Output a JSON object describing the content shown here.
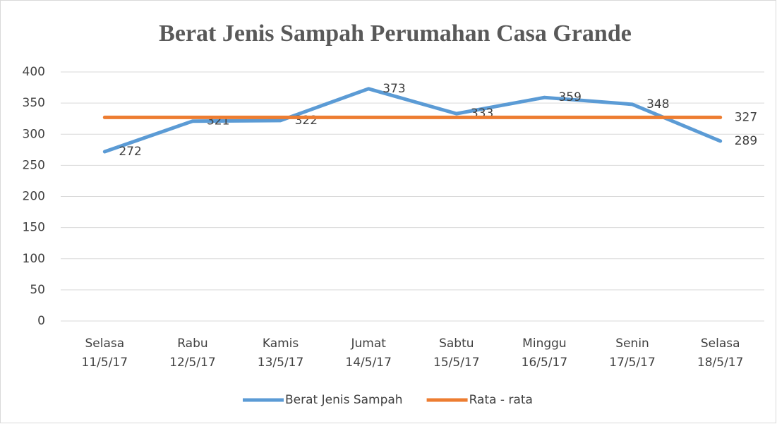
{
  "chart_data": {
    "type": "line",
    "title": "Berat Jenis Sampah Perumahan Casa Grande",
    "categories": [
      [
        "Selasa",
        "11/5/17"
      ],
      [
        "Rabu",
        "12/5/17"
      ],
      [
        "Kamis",
        "13/5/17"
      ],
      [
        "Jumat",
        "14/5/17"
      ],
      [
        "Sabtu",
        "15/5/17"
      ],
      [
        "Minggu",
        "16/5/17"
      ],
      [
        "Senin",
        "17/5/17"
      ],
      [
        "Selasa",
        "18/5/17"
      ]
    ],
    "series": [
      {
        "name": "Berat Jenis Sampah",
        "color": "#5b9bd5",
        "values": [
          272,
          321,
          322,
          373,
          333,
          359,
          348,
          289
        ],
        "data_labels": "all"
      },
      {
        "name": "Rata - rata",
        "color": "#ed7d31",
        "values": [
          327,
          327,
          327,
          327,
          327,
          327,
          327,
          327
        ],
        "data_labels": "last"
      }
    ],
    "ylim": [
      0,
      400
    ],
    "yticks": [
      0,
      50,
      100,
      150,
      200,
      250,
      300,
      350,
      400
    ],
    "grid": true,
    "legend": "bottom"
  }
}
